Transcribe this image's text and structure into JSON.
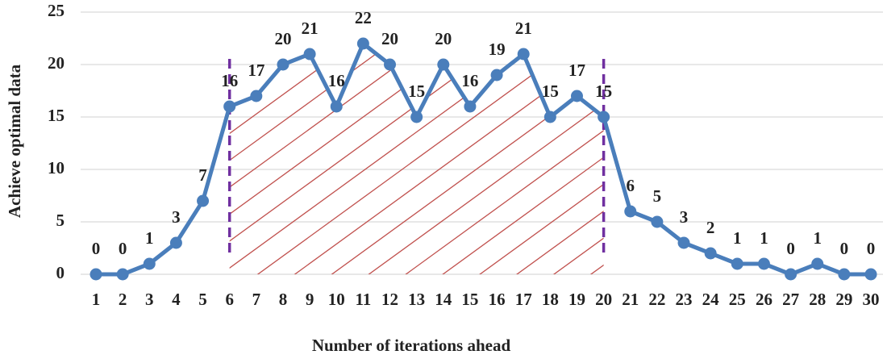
{
  "chart_data": {
    "type": "line",
    "x_label": "Number of iterations ahead",
    "y_label": "Achieve optimal data",
    "categories": [
      1,
      2,
      3,
      4,
      5,
      6,
      7,
      8,
      9,
      10,
      11,
      12,
      13,
      14,
      15,
      16,
      17,
      18,
      19,
      20,
      21,
      22,
      23,
      24,
      25,
      26,
      27,
      28,
      29,
      30
    ],
    "values": [
      0,
      0,
      1,
      3,
      7,
      16,
      17,
      20,
      21,
      16,
      22,
      20,
      15,
      20,
      16,
      19,
      21,
      15,
      17,
      15,
      6,
      5,
      3,
      2,
      1,
      1,
      0,
      1,
      0,
      0
    ],
    "color": "#4a7ebb",
    "ylim": [
      0,
      25
    ],
    "yticks": [
      0,
      5,
      10,
      15,
      20,
      25
    ],
    "grid": true,
    "shaded_range": [
      6,
      20
    ],
    "shade_color": "#c0504d",
    "range_line_color": "#7030a0"
  }
}
